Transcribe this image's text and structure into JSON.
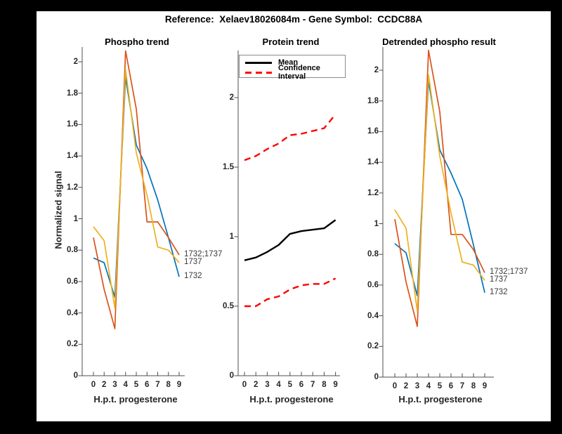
{
  "figure": {
    "title": "Reference:  Xelaev18026084m - Gene Symbol:  CCDC88A",
    "reference": "Xelaev18026084m",
    "gene_symbol": "CCDC88A",
    "background_color": "#FFFFFF",
    "frame_color": "#000000"
  },
  "chart_data": [
    {
      "type": "line",
      "title": "Phospho trend",
      "xlabel": "H.p.t. progesterone",
      "ylabel": "Normalized signal",
      "x_tick_labels": [
        "0",
        "2",
        "3",
        "4",
        "5",
        "6",
        "7",
        "8",
        "9"
      ],
      "x_spacing": "equal",
      "y_ticks": [
        0,
        0.2,
        0.4,
        0.6,
        0.8,
        1,
        1.2,
        1.4,
        1.6,
        1.8,
        2
      ],
      "ylim": [
        0,
        2.09
      ],
      "grid": false,
      "series": [
        {
          "name": "1732",
          "color": "#0072BD",
          "style": "solid",
          "values": [
            0.75,
            0.72,
            0.5,
            1.9,
            1.47,
            1.32,
            1.12,
            0.88,
            0.63
          ]
        },
        {
          "name": "1732;1737",
          "color": "#D95319",
          "style": "solid",
          "values": [
            0.88,
            0.55,
            0.3,
            2.07,
            1.7,
            0.98,
            0.98,
            0.88,
            0.77
          ]
        },
        {
          "name": "1737",
          "color": "#EDB120",
          "style": "solid",
          "values": [
            0.95,
            0.86,
            0.43,
            1.95,
            1.42,
            1.15,
            0.82,
            0.8,
            0.72
          ]
        }
      ],
      "end_labels": [
        "1732;1737",
        "1737",
        "1732"
      ]
    },
    {
      "type": "line",
      "title": "Protein trend",
      "xlabel": "H.p.t. progesterone",
      "ylabel": "",
      "x_tick_labels": [
        "0",
        "2",
        "3",
        "4",
        "5",
        "6",
        "7",
        "8",
        "9"
      ],
      "x_spacing": "equal",
      "y_ticks": [
        0,
        0.5,
        1,
        1.5,
        2
      ],
      "ylim": [
        0,
        2.34
      ],
      "grid": false,
      "legend": {
        "position": "northwest",
        "entries": [
          {
            "label": "Mean",
            "color": "#000000",
            "style": "solid"
          },
          {
            "label": "Confidence Interval",
            "color": "#FF0000",
            "style": "dashed"
          }
        ]
      },
      "series": [
        {
          "name": "Mean",
          "color": "#000000",
          "style": "solid",
          "values": [
            0.83,
            0.85,
            0.89,
            0.94,
            1.02,
            1.04,
            1.05,
            1.06,
            1.12
          ]
        },
        {
          "name": "Confidence Interval (upper)",
          "color": "#FF0000",
          "style": "dashed",
          "values": [
            1.55,
            1.58,
            1.63,
            1.67,
            1.73,
            1.74,
            1.76,
            1.78,
            1.88
          ]
        },
        {
          "name": "Confidence Interval (lower)",
          "color": "#FF0000",
          "style": "dashed",
          "values": [
            0.5,
            0.5,
            0.55,
            0.57,
            0.62,
            0.65,
            0.66,
            0.66,
            0.7
          ]
        }
      ],
      "end_labels": []
    },
    {
      "type": "line",
      "title": "Detrended phospho result",
      "xlabel": "H.p.t. progesterone",
      "ylabel": "",
      "x_tick_labels": [
        "0",
        "2",
        "3",
        "4",
        "5",
        "6",
        "7",
        "8",
        "9"
      ],
      "x_spacing": "equal",
      "y_ticks": [
        0,
        0.2,
        0.4,
        0.6,
        0.8,
        1,
        1.2,
        1.4,
        1.6,
        1.8,
        2
      ],
      "ylim": [
        0,
        2.15
      ],
      "grid": false,
      "series": [
        {
          "name": "1732",
          "color": "#0072BD",
          "style": "solid",
          "values": [
            0.87,
            0.81,
            0.53,
            1.93,
            1.48,
            1.33,
            1.16,
            0.86,
            0.55
          ]
        },
        {
          "name": "1732;1737",
          "color": "#D95319",
          "style": "solid",
          "values": [
            1.03,
            0.62,
            0.33,
            2.13,
            1.73,
            0.93,
            0.93,
            0.83,
            0.68
          ]
        },
        {
          "name": "1737",
          "color": "#EDB120",
          "style": "solid",
          "values": [
            1.09,
            0.97,
            0.43,
            1.97,
            1.44,
            1.07,
            0.75,
            0.73,
            0.63
          ]
        }
      ],
      "end_labels": [
        "1732;1737",
        "1737",
        "1732"
      ]
    }
  ]
}
